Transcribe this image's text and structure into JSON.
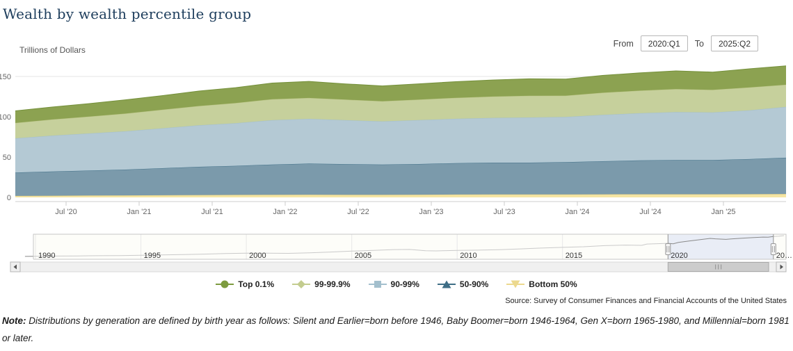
{
  "page": {
    "title": "Wealth by wealth percentile group"
  },
  "controls": {
    "from_label": "From",
    "from_value": "2020:Q1",
    "to_label": "To",
    "to_value": "2025:Q2"
  },
  "chart": {
    "units_label": "Trillions of Dollars",
    "source": "Source: Survey of Consumer Finances and Financial Accounts of the United States"
  },
  "note": {
    "prefix": "Note:",
    "text": " Distributions by generation are defined by birth year as follows: Silent and Earlier=born before 1946, Baby Boomer=born 1946-1964, Gen X=born 1965-1980, and Millennial=born 1981 or later."
  },
  "chart_data": [
    {
      "type": "area",
      "stacking": "normal",
      "title": "Wealth by wealth percentile group",
      "xlabel": "",
      "ylabel": "Trillions of Dollars",
      "ylim": [
        0,
        167
      ],
      "yticks": [
        0,
        50,
        100,
        150
      ],
      "grid": "horizontal",
      "xtick_labels": [
        "Jul '20",
        "Jan '21",
        "Jul '21",
        "Jan '22",
        "Jul '22",
        "Jan '23",
        "Jul '23",
        "Jan '24",
        "Jul '24",
        "Jan '25"
      ],
      "categories": [
        "2020:Q1",
        "2020:Q2",
        "2020:Q3",
        "2020:Q4",
        "2021:Q1",
        "2021:Q2",
        "2021:Q3",
        "2021:Q4",
        "2022:Q1",
        "2022:Q2",
        "2022:Q3",
        "2022:Q4",
        "2023:Q1",
        "2023:Q2",
        "2023:Q3",
        "2023:Q4",
        "2024:Q1",
        "2024:Q2",
        "2024:Q3",
        "2024:Q4",
        "2025:Q1",
        "2025:Q2"
      ],
      "series": [
        {
          "name": "Bottom 50%",
          "fill_color": "#f5e5a3",
          "line_color": "#e6d081",
          "values": [
            1.8,
            2.1,
            2.3,
            2.5,
            2.7,
            2.9,
            3.1,
            3.3,
            3.4,
            3.3,
            3.3,
            3.4,
            3.5,
            3.6,
            3.6,
            3.7,
            3.8,
            3.9,
            3.9,
            3.9,
            4.0,
            4.2
          ]
        },
        {
          "name": "50-90%",
          "fill_color": "#7b9aab",
          "line_color": "#3f6e86",
          "values": [
            29.0,
            30.0,
            31.0,
            32.0,
            33.5,
            35.0,
            36.0,
            37.5,
            38.5,
            38.0,
            37.5,
            38.0,
            39.0,
            39.5,
            39.5,
            40.0,
            41.0,
            42.0,
            42.5,
            42.5,
            43.5,
            45.0
          ]
        },
        {
          "name": "90-99%",
          "fill_color": "#b4c9d4",
          "line_color": "#a2bfcd",
          "values": [
            42.5,
            44.5,
            46.0,
            47.5,
            49.5,
            51.5,
            53.0,
            55.0,
            55.5,
            54.5,
            53.5,
            54.5,
            55.0,
            55.5,
            56.0,
            56.0,
            57.5,
            58.5,
            59.5,
            59.0,
            60.5,
            63.0
          ]
        },
        {
          "name": "99-99.9%",
          "fill_color": "#c6d09c",
          "line_color": "#b9c383",
          "values": [
            19.0,
            20.0,
            21.0,
            22.0,
            23.0,
            24.0,
            25.0,
            26.0,
            26.0,
            25.5,
            25.0,
            25.5,
            26.0,
            26.5,
            27.0,
            26.5,
            27.5,
            28.0,
            28.5,
            28.0,
            28.5,
            27.5
          ]
        },
        {
          "name": "Top 0.1%",
          "fill_color": "#8ca251",
          "line_color": "#74903a",
          "values": [
            15.0,
            15.5,
            16.0,
            17.0,
            17.5,
            18.5,
            19.0,
            20.0,
            20.5,
            19.5,
            19.0,
            19.5,
            20.0,
            20.5,
            21.0,
            20.5,
            21.5,
            22.0,
            22.5,
            22.0,
            23.0,
            23.5
          ]
        }
      ],
      "legend": {
        "position": "bottom-center",
        "items": [
          {
            "label": "Top 0.1%",
            "shape": "circle",
            "color": "#7d9b3f"
          },
          {
            "label": "99-99.9%",
            "shape": "diamond",
            "color": "#c3cc8f"
          },
          {
            "label": "90-99%",
            "shape": "square",
            "color": "#a3bfcd"
          },
          {
            "label": "50-90%",
            "shape": "triangle",
            "color": "#3f6e86"
          },
          {
            "label": "Bottom 50%",
            "shape": "triangle-down",
            "color": "#ecd98e"
          }
        ]
      }
    },
    {
      "type": "line",
      "name": "navigator-total-net-worth",
      "ylim": [
        0,
        168
      ],
      "xtick_labels": [
        "1990",
        "1995",
        "2000",
        "2005",
        "2010",
        "2015",
        "2020",
        "20…"
      ],
      "xtick_years": [
        1990,
        1995,
        2000,
        2005,
        2010,
        2015,
        2020,
        2025
      ],
      "selected_range_years": [
        2020,
        2025
      ],
      "x_years": [
        1989.5,
        1990,
        1991,
        1992,
        1993,
        1994,
        1995,
        1996,
        1997,
        1998,
        1999,
        2000,
        2001,
        2002,
        2003,
        2004,
        2005,
        2006,
        2007,
        2007.75,
        2008.5,
        2009,
        2009.5,
        2010,
        2011,
        2012,
        2013,
        2014,
        2015,
        2016,
        2017,
        2018,
        2018.75,
        2019,
        2020,
        2020.25,
        2020.5,
        2021,
        2021.5,
        2022,
        2022.25,
        2022.75,
        2023,
        2023.5,
        2024,
        2024.5,
        2024.75,
        2025,
        2025.25,
        2025.5
      ],
      "values": [
        19.5,
        20.5,
        22,
        23,
        24.5,
        25.5,
        27.5,
        30,
        32.5,
        35.5,
        39.5,
        42,
        42,
        41,
        44.5,
        50,
        56,
        61.5,
        66.5,
        67.5,
        59,
        57.5,
        59.5,
        61.5,
        63,
        66,
        71.5,
        77.5,
        82,
        86.5,
        94,
        98,
        96,
        105,
        110,
        107,
        116,
        126,
        135,
        144,
        141,
        137.5,
        140,
        145,
        149.5,
        153,
        152,
        157,
        159,
        163
      ],
      "colors": {
        "line": "#8a8a8a",
        "selected_bg": "#e9edf6",
        "unselected_bg": "#fbfaf1",
        "grid": "#cccccc",
        "border": "#c6c6c6",
        "handle": "#999999",
        "scroll_track": "#f0f0f0",
        "scroll_thumb": "#cccccc",
        "scroll_border": "#b5b5b5"
      }
    }
  ]
}
